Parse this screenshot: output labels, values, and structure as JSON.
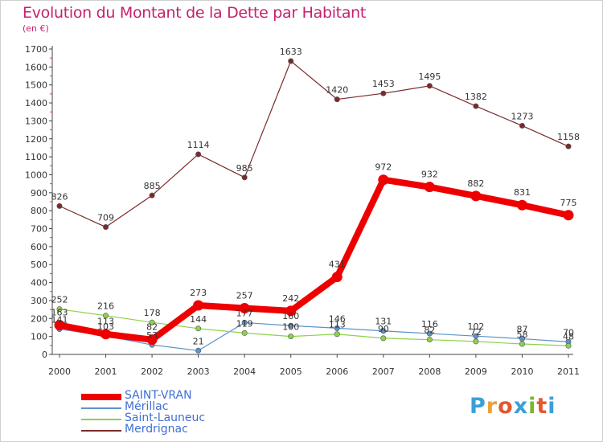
{
  "header": {
    "title": "Evolution du Montant de la Dette par Habitant",
    "subtitle": "(en €)"
  },
  "logo": {
    "text": "Proxiti",
    "letter_colors": [
      "#3aa0d8",
      "#e8a23a",
      "#e4572e",
      "#3aa0d8",
      "#76b82a",
      "#e4572e",
      "#3aa0d8"
    ]
  },
  "chart_data": {
    "type": "line",
    "x": [
      "2000",
      "2001",
      "2002",
      "2003",
      "2004",
      "2005",
      "2006",
      "2007",
      "2008",
      "2009",
      "2010",
      "2011"
    ],
    "yticks": [
      "0",
      "100",
      "200",
      "300",
      "400",
      "500",
      "600",
      "700",
      "800",
      "900",
      "1000",
      "1100",
      "1200",
      "1300",
      "1400",
      "1500",
      "1600",
      "1700"
    ],
    "ylim": [
      0,
      1700
    ],
    "grid": false,
    "legend_position": "bottom-left",
    "series": [
      {
        "name": "SAINT-VRAN",
        "color": "#ee0000",
        "values": [
          163,
          113,
          82,
          273,
          257,
          242,
          431,
          972,
          932,
          882,
          831,
          775
        ],
        "labels": [
          "163",
          "113",
          "82",
          "273",
          "257",
          "242",
          "431",
          "972",
          "932",
          "882",
          "831",
          "775"
        ]
      },
      {
        "name": "Mérillac",
        "color": "#5b93c8",
        "values": [
          141,
          103,
          53,
          21,
          177,
          160,
          146,
          131,
          116,
          102,
          87,
          70
        ],
        "labels": [
          "141",
          "103",
          "53",
          "21",
          "177",
          "160",
          "146",
          "131",
          "116",
          "102",
          "87",
          "70"
        ]
      },
      {
        "name": "Saint-Launeuc",
        "color": "#8ed14b",
        "values": [
          252,
          216,
          178,
          144,
          119,
          100,
          113,
          90,
          82,
          72,
          58,
          48
        ],
        "labels": [
          "252",
          "216",
          "178",
          "144",
          "119",
          "100",
          "113",
          "90",
          "82",
          "72",
          "58",
          "48"
        ]
      },
      {
        "name": "Merdrignac",
        "color": "#7a2a2a",
        "values": [
          826,
          709,
          885,
          1114,
          985,
          1633,
          1420,
          1453,
          1495,
          1382,
          1273,
          1158
        ],
        "labels": [
          "826",
          "709",
          "885",
          "1114",
          "985",
          "1633",
          "1420",
          "1453",
          "1495",
          "1382",
          "1273",
          "1158"
        ]
      }
    ]
  }
}
